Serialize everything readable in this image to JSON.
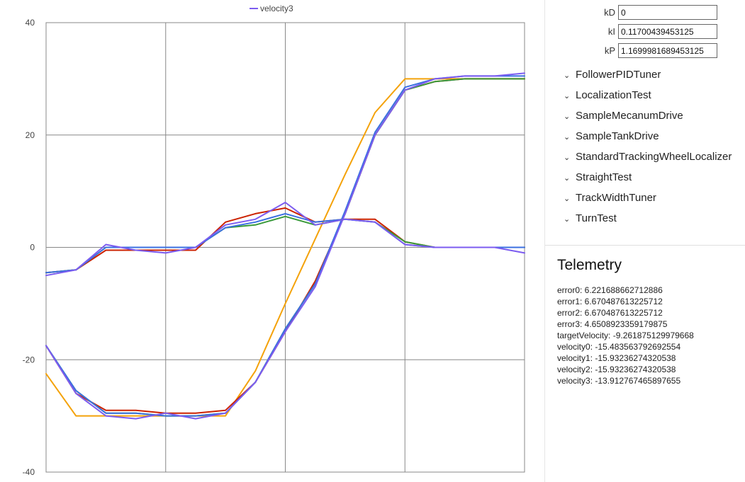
{
  "chart_data": {
    "type": "line",
    "title": "",
    "xlabel": "",
    "ylabel": "",
    "ylim": [
      -40,
      40
    ],
    "yticks": [
      40,
      20,
      0,
      -20,
      -40
    ],
    "grid": true,
    "legend": {
      "placement": "top-center",
      "visible_entries": [
        "velocity3"
      ]
    },
    "x": [
      0,
      0.5,
      1,
      1.5,
      2,
      2.5,
      3,
      3.5,
      4,
      4.5,
      5,
      5.5,
      6,
      6.5,
      7,
      7.5,
      8
    ],
    "series": [
      {
        "key": "velocity_a",
        "color": "#f4a20a",
        "values": [
          -22.5,
          -30,
          -30,
          -30,
          -30,
          -30,
          -30,
          -22,
          -10,
          1.5,
          13,
          24,
          30,
          30,
          30,
          30,
          30
        ]
      },
      {
        "key": "velocity_b",
        "color": "#cc2200",
        "values": [
          -17.5,
          -26,
          -29,
          -29,
          -29.5,
          -29.5,
          -29,
          -24,
          -15,
          -6,
          6,
          20,
          28,
          29.5,
          30,
          30,
          30
        ]
      },
      {
        "key": "velocity_c",
        "color": "#3a9a3a",
        "values": [
          -17.5,
          -25.5,
          -29.5,
          -29.5,
          -30,
          -30,
          -29.5,
          -24,
          -14.5,
          -6.5,
          6,
          20,
          28,
          29.5,
          30,
          30,
          30
        ]
      },
      {
        "key": "velocity_d",
        "color": "#3a6fe0",
        "values": [
          -17.5,
          -25.5,
          -29.5,
          -29.5,
          -30,
          -30,
          -29.5,
          -24,
          -14.5,
          -6.5,
          6.5,
          20.5,
          28.5,
          30,
          30.5,
          30.5,
          30.5
        ]
      },
      {
        "key": "velocity3",
        "name": "velocity3",
        "color": "#7c5cf0",
        "values": [
          -17.5,
          -26,
          -30,
          -30.5,
          -29.5,
          -30.5,
          -29.5,
          -24,
          -15,
          -7,
          6,
          20,
          28,
          30,
          30.5,
          30.5,
          31
        ]
      },
      {
        "key": "error_b",
        "color": "#cc2200",
        "values": [
          -4.5,
          -4,
          -0.5,
          -0.5,
          -0.5,
          -0.5,
          4.5,
          6,
          7,
          4.5,
          5,
          5,
          1,
          0,
          0,
          0,
          0
        ]
      },
      {
        "key": "error_c",
        "color": "#3a9a3a",
        "values": [
          -4.5,
          -4,
          0,
          0,
          0,
          0,
          3.5,
          4,
          5.5,
          4,
          5,
          4.5,
          1,
          0,
          0,
          0,
          0
        ]
      },
      {
        "key": "error_d",
        "color": "#3a6fe0",
        "values": [
          -4.5,
          -4,
          0,
          0,
          0,
          0,
          3.5,
          4.5,
          6,
          4.5,
          5,
          4.5,
          0.5,
          0,
          0,
          0,
          0
        ]
      },
      {
        "key": "error3",
        "color": "#7c5cf0",
        "values": [
          -5,
          -4,
          0.5,
          -0.5,
          -1,
          0,
          4,
          5,
          8,
          4,
          5,
          4.5,
          0.5,
          0,
          0,
          0,
          -1
        ]
      }
    ]
  },
  "gains": [
    {
      "label": "kD",
      "value": "0"
    },
    {
      "label": "kI",
      "value": "0.11700439453125"
    },
    {
      "label": "kP",
      "value": "1.1699981689453125"
    }
  ],
  "opmodes": [
    {
      "label": "FollowerPIDTuner",
      "icon": "chevron-down-icon"
    },
    {
      "label": "LocalizationTest",
      "icon": "chevron-down-icon"
    },
    {
      "label": "SampleMecanumDrive",
      "icon": "chevron-down-icon"
    },
    {
      "label": "SampleTankDrive",
      "icon": "chevron-down-icon"
    },
    {
      "label": "StandardTrackingWheelLocalizer",
      "icon": "chevron-down-icon"
    },
    {
      "label": "StraightTest",
      "icon": "chevron-down-icon"
    },
    {
      "label": "TrackWidthTuner",
      "icon": "chevron-down-icon"
    },
    {
      "label": "TurnTest",
      "icon": "chevron-down-icon"
    }
  ],
  "telemetry": {
    "title": "Telemetry",
    "lines": [
      "error0: 6.221688662712886",
      "error1: 6.670487613225712",
      "error2: 6.670487613225712",
      "error3: 4.6508923359179875",
      "targetVelocity: -9.261875129979668",
      "velocity0: -15.483563792692554",
      "velocity1: -15.93236274320538",
      "velocity2: -15.93236274320538",
      "velocity3: -13.912767465897655"
    ]
  }
}
